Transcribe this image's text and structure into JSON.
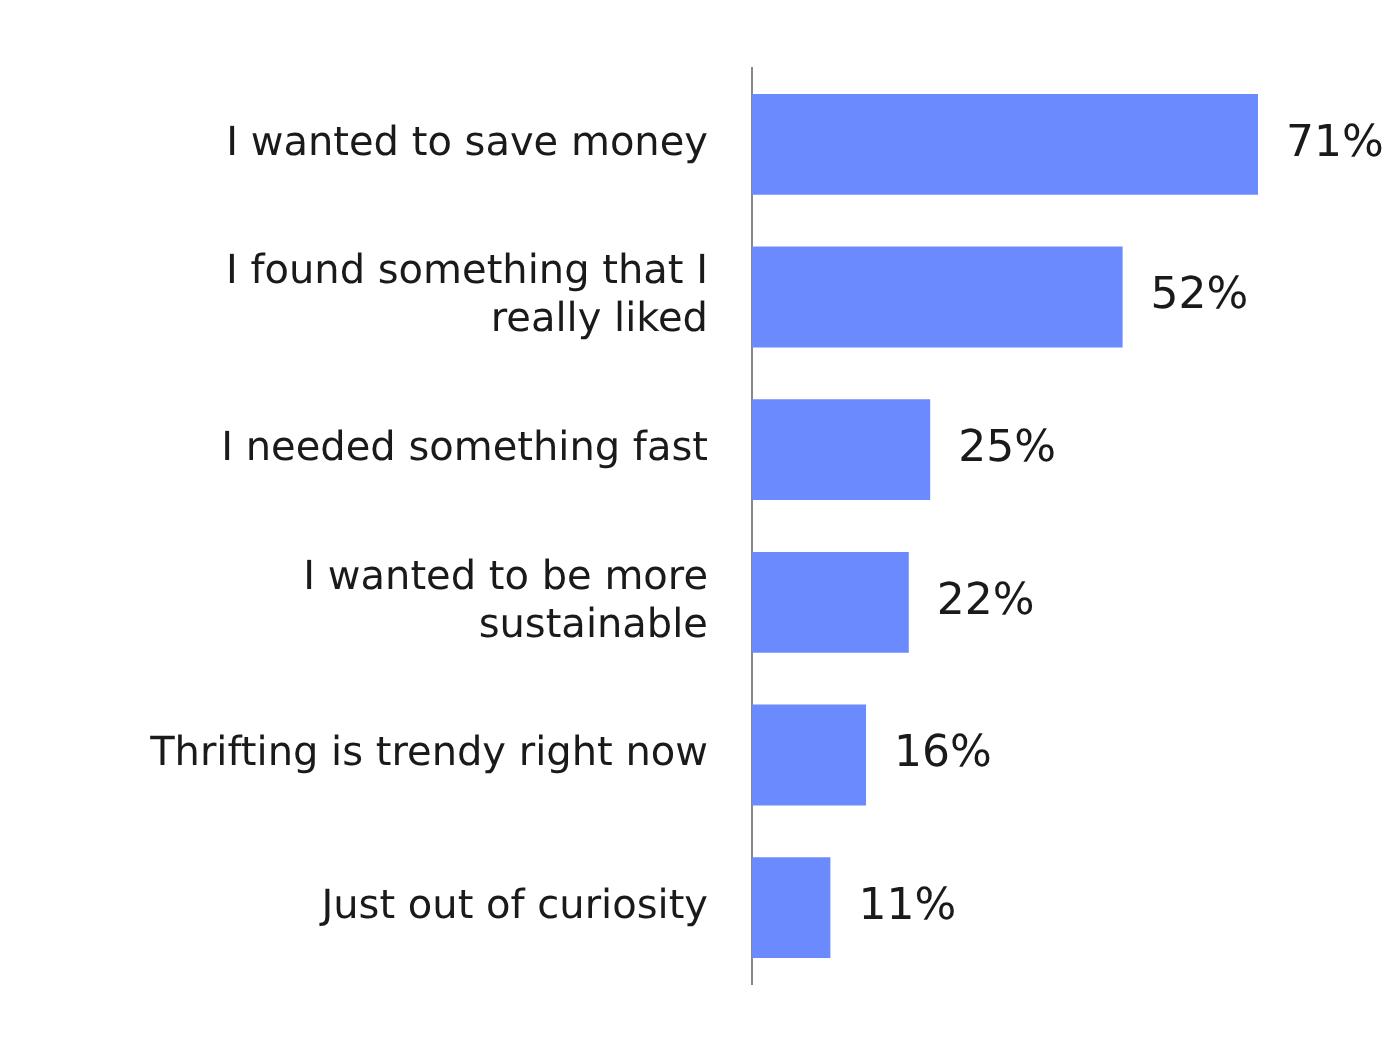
{
  "chart_data": {
    "type": "bar",
    "orientation": "horizontal",
    "categories": [
      "I wanted to save money",
      "I found something that I really liked",
      "I needed something fast",
      "I wanted to be more sustainable",
      "Thrifting is trendy right now",
      "Just out of curiosity"
    ],
    "values": [
      71,
      52,
      25,
      22,
      16,
      11
    ],
    "value_labels": [
      "71%",
      "52%",
      "25%",
      "22%",
      "16%",
      "11%"
    ],
    "color": "#6b8afd",
    "legend": false
  }
}
